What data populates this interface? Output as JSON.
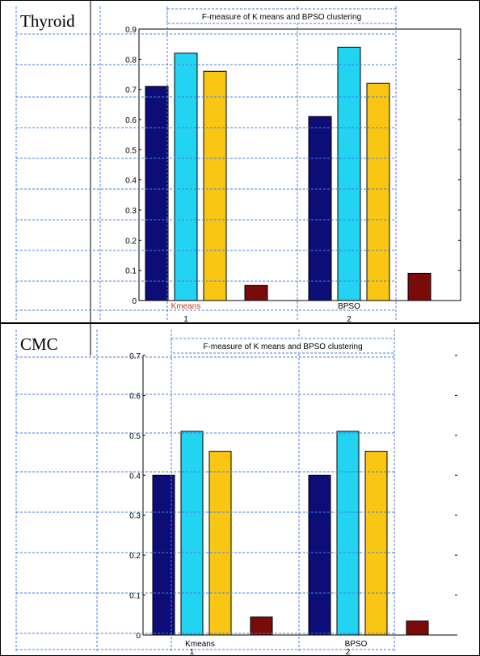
{
  "chart_data": [
    {
      "type": "bar",
      "dataset_label": "Thyroid",
      "title": "F-measure of K means and BPSO clustering",
      "categories": [
        "1",
        "2"
      ],
      "category_texts": [
        "Kmeans",
        "BPSO"
      ],
      "series": [
        {
          "color": "#0d0d78",
          "values": [
            0.71,
            0.61
          ]
        },
        {
          "color": "#22d3f2",
          "values": [
            0.82,
            0.84
          ]
        },
        {
          "color": "#f9c613",
          "values": [
            0.76,
            0.72
          ]
        },
        {
          "color": "#7a0b0b",
          "values": [
            0.05,
            0.09
          ]
        }
      ],
      "ylim": [
        0,
        0.9
      ],
      "yticks": [
        "0",
        "0.1",
        "0.2",
        "0.3",
        "0.4",
        "0.5",
        "0.6",
        "0.7",
        "0.8",
        "0.9"
      ],
      "xlabel": "",
      "ylabel": "",
      "grid": false
    },
    {
      "type": "bar",
      "dataset_label": "CMC",
      "title": "F-measure of K means and BPSO clustering",
      "categories": [
        "1",
        "2"
      ],
      "category_texts": [
        "Kmeans",
        "BPSO"
      ],
      "series": [
        {
          "color": "#0d0d78",
          "values": [
            0.4,
            0.4
          ]
        },
        {
          "color": "#22d3f2",
          "values": [
            0.51,
            0.51
          ]
        },
        {
          "color": "#f9c613",
          "values": [
            0.46,
            0.46
          ]
        },
        {
          "color": "#7a0b0b",
          "values": [
            0.045,
            0.035
          ]
        }
      ],
      "ylim": [
        0,
        0.7
      ],
      "yticks": [
        "0",
        "0.1",
        "0.2",
        "0.3",
        "0.4",
        "0.5",
        "0.6",
        "0.7"
      ],
      "xlabel": "",
      "ylabel": "",
      "grid": false
    }
  ]
}
